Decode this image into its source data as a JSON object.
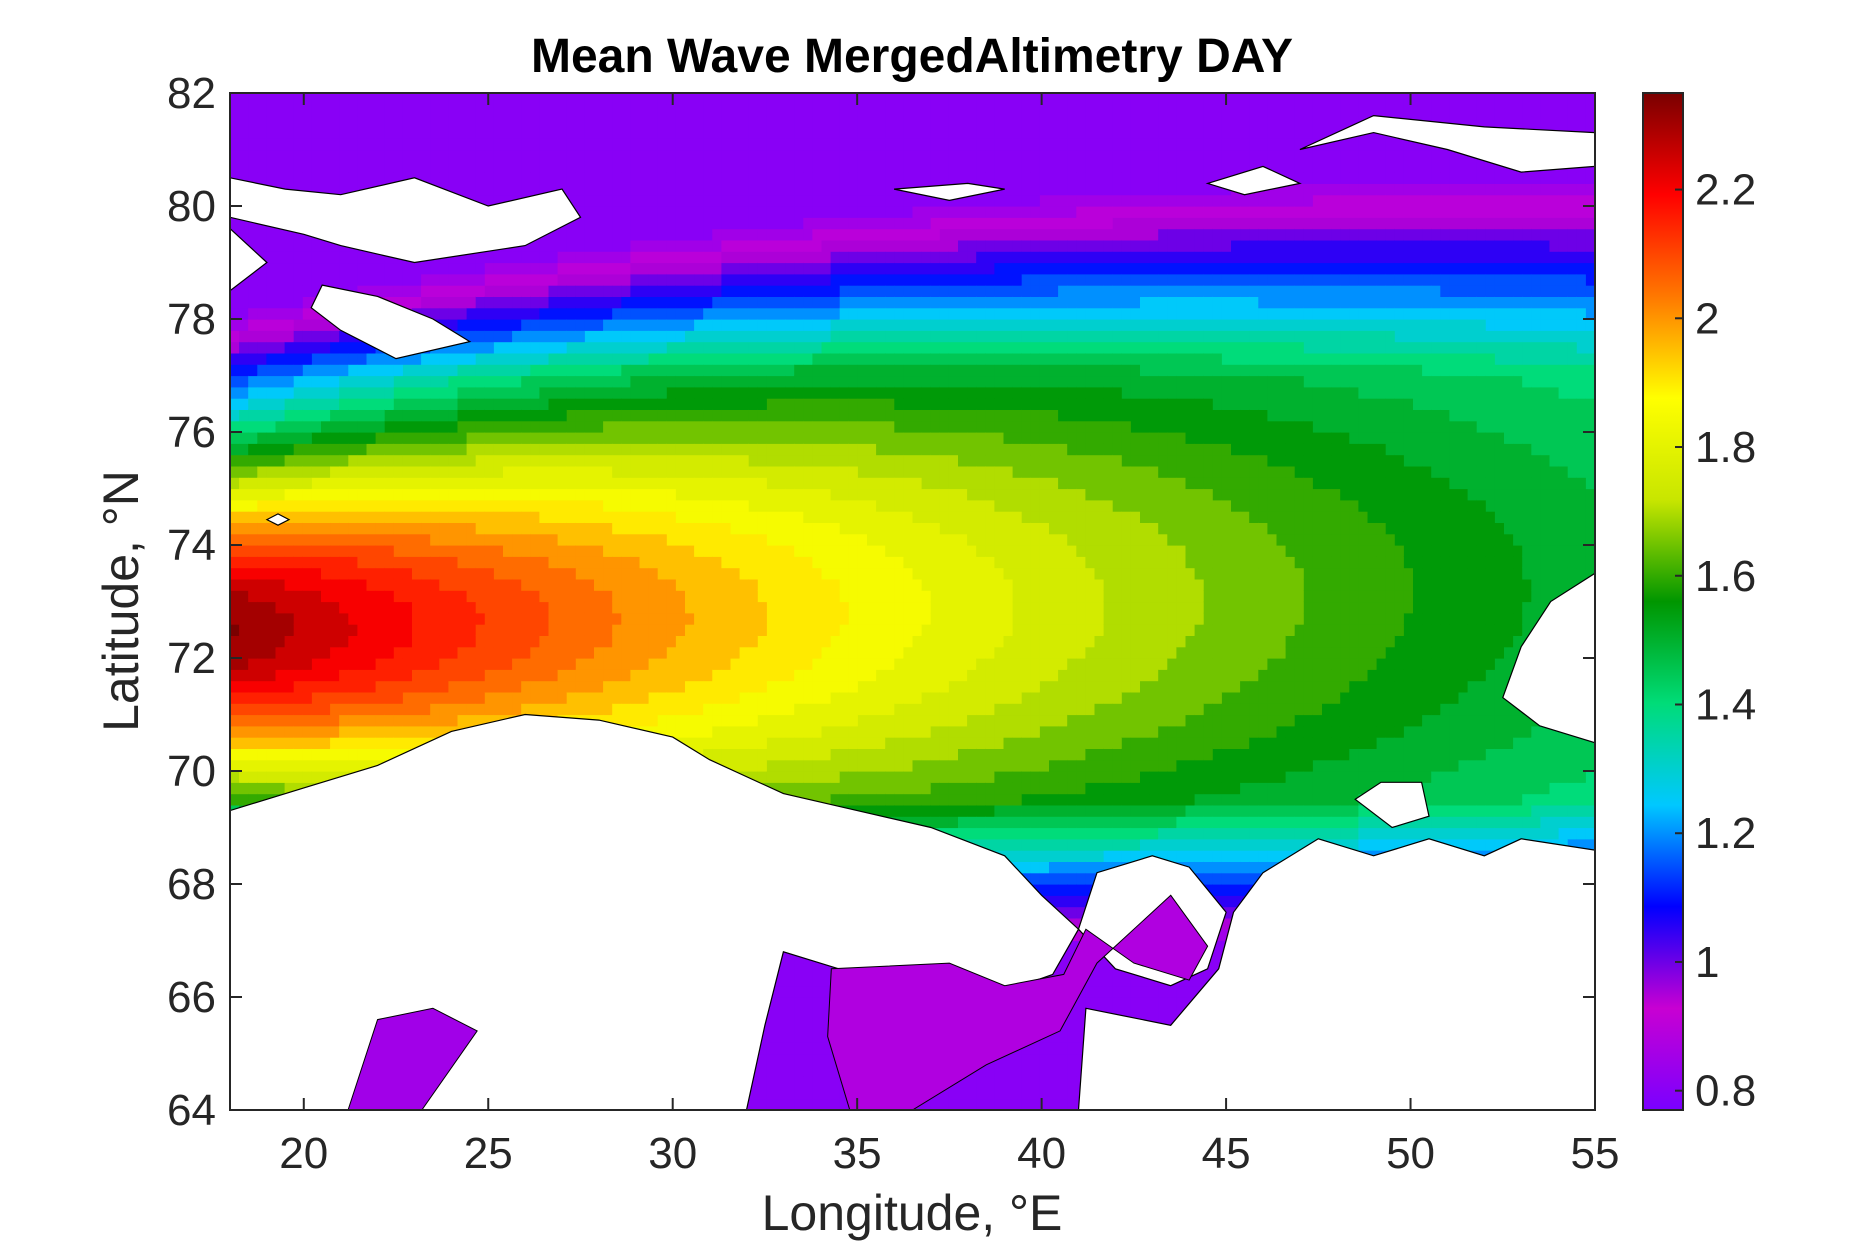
{
  "chart_data": {
    "type": "heatmap",
    "title": "Mean Wave MergedAltimetry DAY",
    "xlabel": "Longitude, °E",
    "ylabel": "Latitude, °N",
    "xlim": [
      18,
      55
    ],
    "ylim": [
      64,
      82
    ],
    "x_ticks": [
      20,
      25,
      30,
      35,
      40,
      45,
      50,
      55
    ],
    "y_ticks": [
      64,
      66,
      68,
      70,
      72,
      74,
      76,
      78,
      80,
      82
    ],
    "colorbar": {
      "range": [
        0.77,
        2.35
      ],
      "ticks": [
        "0.8",
        "1",
        "1.2",
        "1.4",
        "1.6",
        "1.8",
        "2",
        "2.2"
      ],
      "tick_values": [
        0.8,
        1.0,
        1.2,
        1.4,
        1.6,
        1.8,
        2.0,
        2.2
      ],
      "colormap": [
        "#7a00ff",
        "#c800d2",
        "#0000ff",
        "#00c8ff",
        "#00dc78",
        "#009600",
        "#c8e600",
        "#ffff00",
        "#ff7800",
        "#ff0000",
        "#7a0000"
      ]
    },
    "field": {
      "description_key": "mean_wave_height",
      "peak": {
        "lon": 18,
        "lat": 72,
        "value": 2.33
      },
      "north_min": {
        "lon": 26,
        "lat": 82,
        "value": 0.9
      },
      "white_sea": {
        "lon": 37,
        "lat": 65.5,
        "value": 0.85
      },
      "east_edge": {
        "lon": 55,
        "lat": 73,
        "value": 1.65
      }
    },
    "land_color": "#ffffff",
    "contour_color": "#000000"
  }
}
